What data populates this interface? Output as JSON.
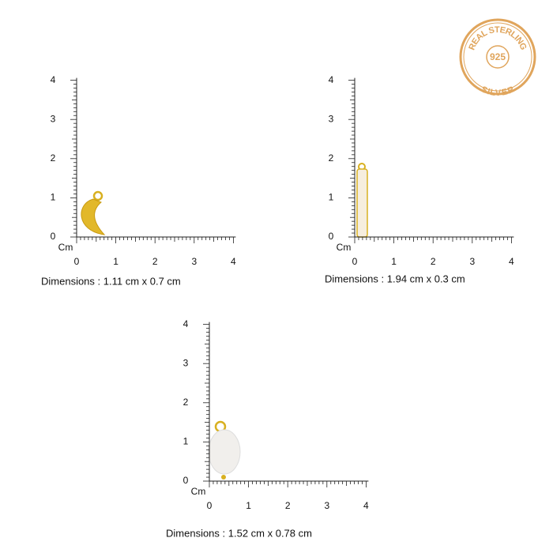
{
  "badge": {
    "top": "REAL STERLING",
    "center": "925",
    "bottom": "SILVER"
  },
  "rulers": [
    {
      "y_labels": [
        "0",
        "1",
        "2",
        "3",
        "4"
      ],
      "x_labels": [
        "0",
        "1",
        "2",
        "3",
        "4"
      ],
      "unit": "Cm",
      "dimensions": "Dimensions : 1.11 cm x 0.7 cm"
    },
    {
      "y_labels": [
        "0",
        "1",
        "2",
        "3",
        "4"
      ],
      "x_labels": [
        "0",
        "1",
        "2",
        "3",
        "4"
      ],
      "unit": "Cm",
      "dimensions": "Dimensions : 1.94 cm x 0.3 cm"
    },
    {
      "y_labels": [
        "0",
        "1",
        "2",
        "3",
        "4"
      ],
      "x_labels": [
        "0",
        "1",
        "2",
        "3",
        "4"
      ],
      "unit": "Cm",
      "dimensions": "Dimensions : 1.52 cm x 0.78 cm"
    }
  ]
}
